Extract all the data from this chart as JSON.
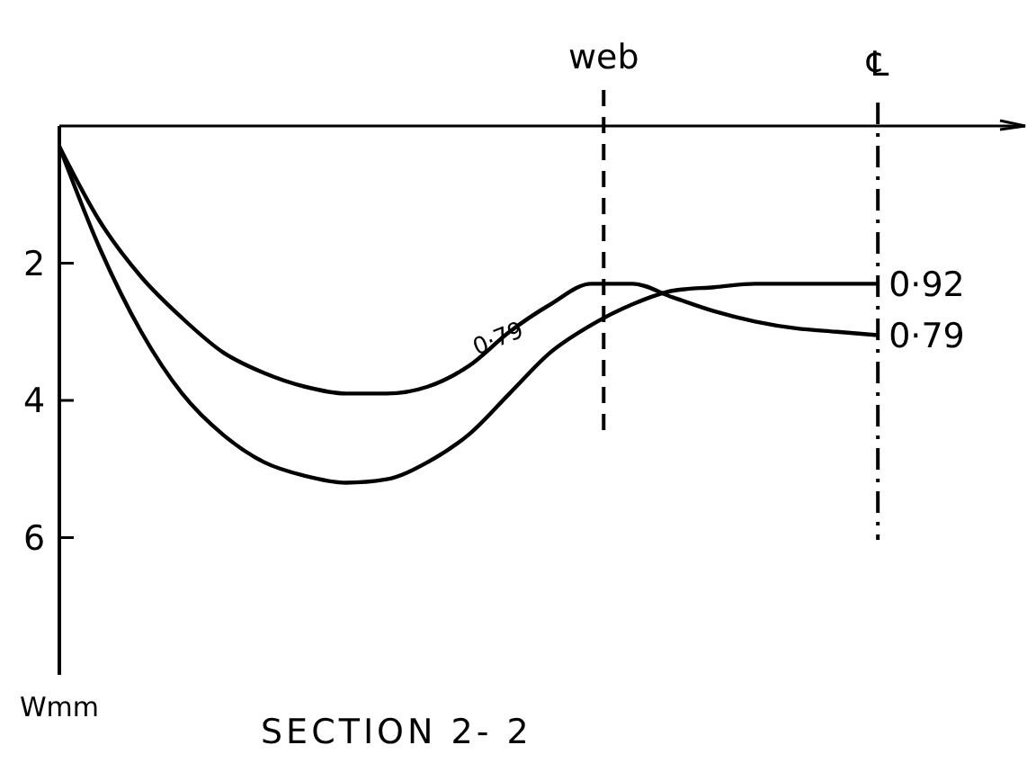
{
  "chart_data": {
    "type": "line",
    "title": "SECTION 2- 2",
    "categories": [
      null,
      null,
      null,
      null,
      null,
      null,
      null,
      null,
      null,
      null,
      null,
      null,
      null,
      null,
      null,
      null,
      null,
      null,
      null,
      null,
      null
    ],
    "series": [
      {
        "name": "0·79",
        "color": "#000000",
        "values": [
          0.3,
          1.4,
          2.2,
          2.8,
          3.3,
          3.6,
          3.8,
          3.9,
          3.9,
          3.8,
          3.5,
          3.0,
          2.6,
          2.3,
          2.3,
          2.5,
          2.7,
          2.85,
          2.95,
          3.0,
          3.05
        ]
      },
      {
        "name": "0·92",
        "color": "#000000",
        "values": [
          0.3,
          1.8,
          3.0,
          3.9,
          4.5,
          4.9,
          5.1,
          5.2,
          5.15,
          4.9,
          4.5,
          3.9,
          3.3,
          2.9,
          2.6,
          2.4,
          2.35,
          2.3,
          2.3,
          2.3,
          2.3
        ]
      }
    ],
    "ylim": [
      8,
      0
    ],
    "yticks": [
      2,
      4,
      6
    ],
    "grid": false,
    "marker": "none",
    "line_style": "solid",
    "tick_labels": "y",
    "annotations": [
      "web",
      "℄",
      "Wmm"
    ]
  }
}
